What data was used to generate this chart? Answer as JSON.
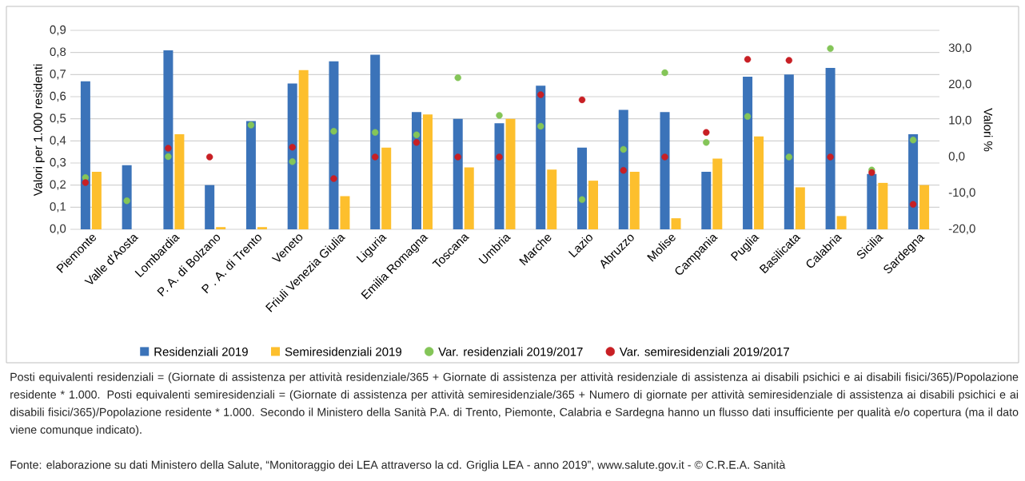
{
  "chart_data": {
    "type": "bar",
    "categories": [
      "Piemonte",
      "Valle d'Aosta",
      "Lombardia",
      "P. A. di Bolzano",
      "P . A. di Trento",
      "Veneto",
      "Friuli Venezia Giulia",
      "Liguria",
      "Emilia Romagna",
      "Toscana",
      "Umbria",
      "Marche",
      "Lazio",
      "Abruzzo",
      "Molise",
      "Campania",
      "Puglia",
      "Basilicata",
      "Calabria",
      "Sicilia",
      "Sardegna"
    ],
    "series": [
      {
        "name": "Residenziali 2019",
        "color": "#3b73b9",
        "values": [
          0.67,
          0.29,
          0.81,
          0.2,
          0.49,
          0.66,
          0.76,
          0.79,
          0.53,
          0.5,
          0.48,
          0.65,
          0.37,
          0.54,
          0.53,
          0.26,
          0.69,
          0.7,
          0.73,
          0.25,
          0.43
        ]
      },
      {
        "name": "Semiresidenziali 2019",
        "color": "#fdbf2d",
        "values": [
          0.26,
          null,
          0.43,
          0.01,
          0.01,
          0.72,
          0.15,
          0.37,
          0.52,
          0.28,
          0.5,
          0.27,
          0.22,
          0.26,
          0.05,
          0.32,
          0.42,
          0.19,
          0.06,
          0.21,
          0.2
        ]
      },
      {
        "name": "Var. residenziali 2019/2017",
        "type": "scatter",
        "axis": "y2",
        "color": "#84c558",
        "values": [
          -5.7,
          -12.1,
          0.1,
          null,
          8.8,
          -1.3,
          7.1,
          6.8,
          6.1,
          21.9,
          11.5,
          8.5,
          -11.8,
          2.1,
          23.3,
          4.0,
          11.2,
          0.0,
          30.0,
          -3.6,
          4.7
        ]
      },
      {
        "name": "Var. semiresidenziali 2019/2017",
        "type": "scatter",
        "axis": "y2",
        "color": "#c81f24",
        "values": [
          -7.1,
          null,
          2.4,
          0.0,
          null,
          2.7,
          -6.0,
          0.0,
          4.0,
          0.0,
          0.0,
          17.2,
          15.8,
          -3.7,
          0.0,
          6.8,
          27.0,
          26.7,
          0.0,
          -4.3,
          -13.1
        ]
      }
    ],
    "ylabel": "Valori per 1.000 residenti",
    "y2label": "Valori %",
    "ylim": [
      0,
      0.9
    ],
    "yticks": [
      {
        "value": 0,
        "label": "0,0"
      },
      {
        "value": 0.1,
        "label": "0,1"
      },
      {
        "value": 0.2,
        "label": "0,2"
      },
      {
        "value": 0.3,
        "label": "0,3"
      },
      {
        "value": 0.4,
        "label": "0,4"
      },
      {
        "value": 0.5,
        "label": "0,5"
      },
      {
        "value": 0.6,
        "label": "0,6"
      },
      {
        "value": 0.7,
        "label": "0,7"
      },
      {
        "value": 0.8,
        "label": "0,8"
      },
      {
        "value": 0.9,
        "label": "0,9"
      }
    ],
    "y2lim": [
      -20,
      35
    ],
    "y2ticks": [
      {
        "value": -20,
        "label": "-20,0"
      },
      {
        "value": -10,
        "label": "-10,0"
      },
      {
        "value": 0,
        "label": "0,0"
      },
      {
        "value": 10,
        "label": "10,0"
      },
      {
        "value": 20,
        "label": "20,0"
      },
      {
        "value": 30,
        "label": "30,0"
      }
    ],
    "grid": "y",
    "legend": "bottom",
    "marker": "circle",
    "annotations": [
      "Posti equivalenti residenziali = (Giornate di assistenza per attività residenziale/365 + Giornate di assistenza per attività residenziale di assistenza ai disabili psichici e ai disabili fisici/365)/Popolazione residente * 1.000. Posti equivalenti semiresidenziali = (Giornate di assistenza per attività semiresidenziale/365 + Numero di giornate per attività semiresidenziale di assistenza ai disabili psichici e ai disabili fisici/365)/Popolazione residente * 1.000. Secondo il Ministero della Sanità P.A. di Trento, Piemonte, Calabria e Sardegna hanno un flusso dati insufficiente per qualità e/o copertura (ma il dato viene comunque indicato).",
      "Fonte: elaborazione su dati Ministero della Salute, “Monitoraggio dei LEA attraverso la cd. Griglia LEA - anno 2019”, www.salute.gov.it - © C.R.E.A. Sanità"
    ]
  }
}
